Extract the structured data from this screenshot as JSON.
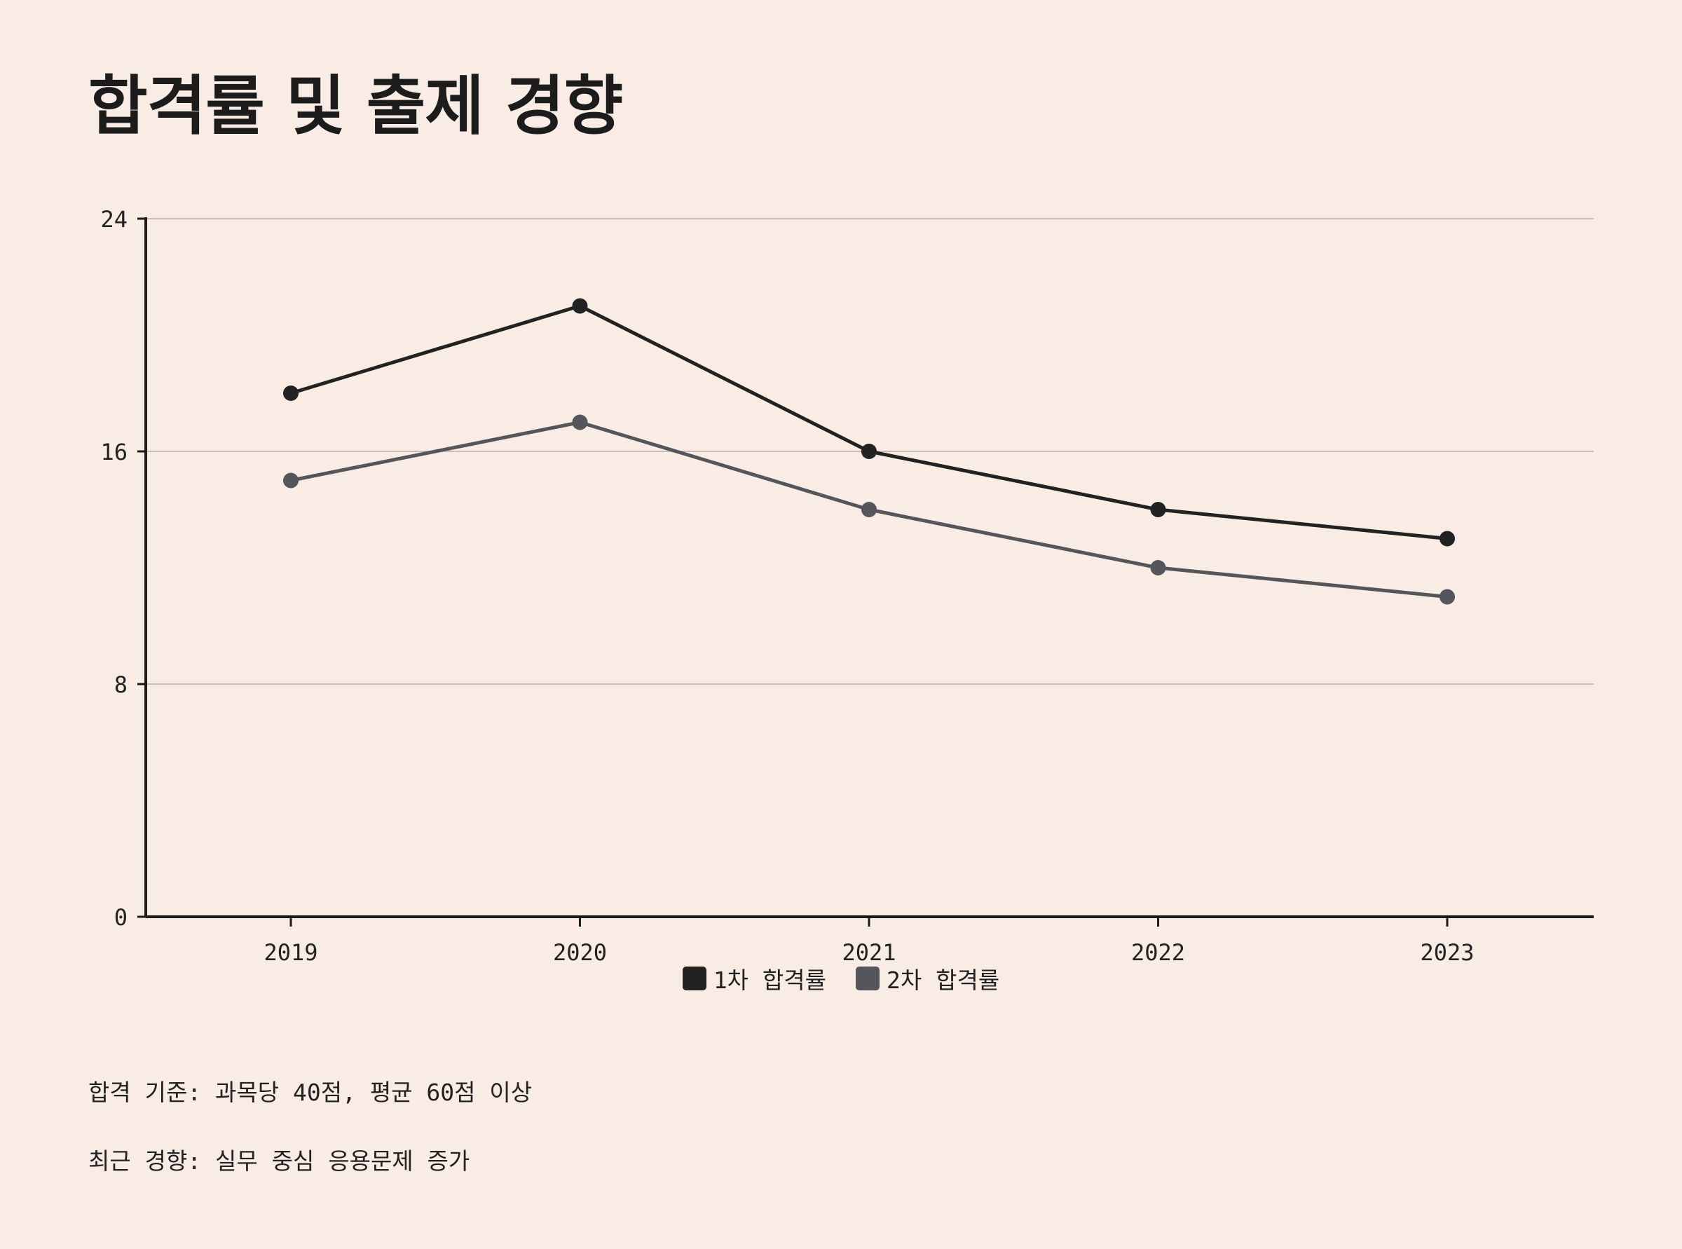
{
  "page": {
    "title": "합격률 및 출제 경향",
    "notes": [
      "합격 기준: 과목당 40점, 평균 60점 이상",
      "최근 경향: 실무 중심 응용문제 증가"
    ]
  },
  "colors": {
    "background": "#f8ece4",
    "series1": "#222222",
    "series2": "#55565b",
    "grid": "#cbbdb5",
    "axis": "#1c1c1c"
  },
  "chart_data": {
    "type": "line",
    "title": "",
    "xlabel": "",
    "ylabel": "",
    "categories": [
      "2019",
      "2020",
      "2021",
      "2022",
      "2023"
    ],
    "series": [
      {
        "name": "1차 합격률",
        "values": [
          18.0,
          21.0,
          16.0,
          14.0,
          13.0
        ]
      },
      {
        "name": "2차 합격률",
        "values": [
          15.0,
          17.0,
          14.0,
          12.0,
          11.0
        ]
      }
    ],
    "ylim": [
      0,
      24
    ],
    "yticks": [
      0,
      8,
      16,
      24
    ],
    "grid": true,
    "legend": "bottom-center"
  }
}
